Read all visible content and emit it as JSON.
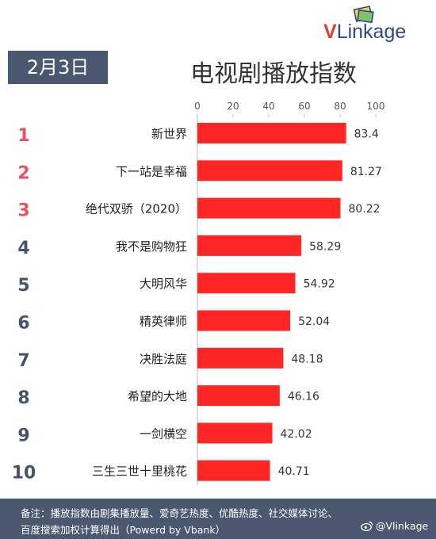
{
  "brand": {
    "logo_v": "V",
    "logo_rest": "Linkage"
  },
  "header": {
    "date": "2月3日",
    "title": "电视剧播放指数"
  },
  "chart_data": {
    "type": "bar",
    "orientation": "horizontal",
    "title": "电视剧播放指数",
    "categories": [
      "新世界",
      "下一站是幸福",
      "绝代双骄（2020）",
      "我不是购物狂",
      "大明风华",
      "精英律师",
      "决胜法庭",
      "希望的大地",
      "一剑横空",
      "三生三世十里桃花"
    ],
    "ranks": [
      "1",
      "2",
      "3",
      "4",
      "5",
      "6",
      "7",
      "8",
      "9",
      "10"
    ],
    "values": [
      83.4,
      81.27,
      80.22,
      58.29,
      54.92,
      52.04,
      48.18,
      46.16,
      42.02,
      40.71
    ],
    "value_labels": [
      "83.4",
      "81.27",
      "80.22",
      "58.29",
      "54.92",
      "52.04",
      "48.18",
      "46.16",
      "42.02",
      "40.71"
    ],
    "xlim": [
      0,
      100
    ],
    "xticks": [
      0,
      20,
      40,
      60,
      80,
      100
    ],
    "axis_position": "top",
    "grid": false,
    "colors": {
      "bar": "#ff2626",
      "rank_top": "#e8535b",
      "rank_other": "#44546a"
    }
  },
  "footer": {
    "line1": "备注：播放指数由剧集播放量、爱奇艺热度、优酷热度、社交媒体讨论、",
    "line2": "百度搜索加权计算得出（Powerd by Vbank）",
    "weibo": "@Vlinkage",
    "weibo_icon": "weibo-icon"
  }
}
